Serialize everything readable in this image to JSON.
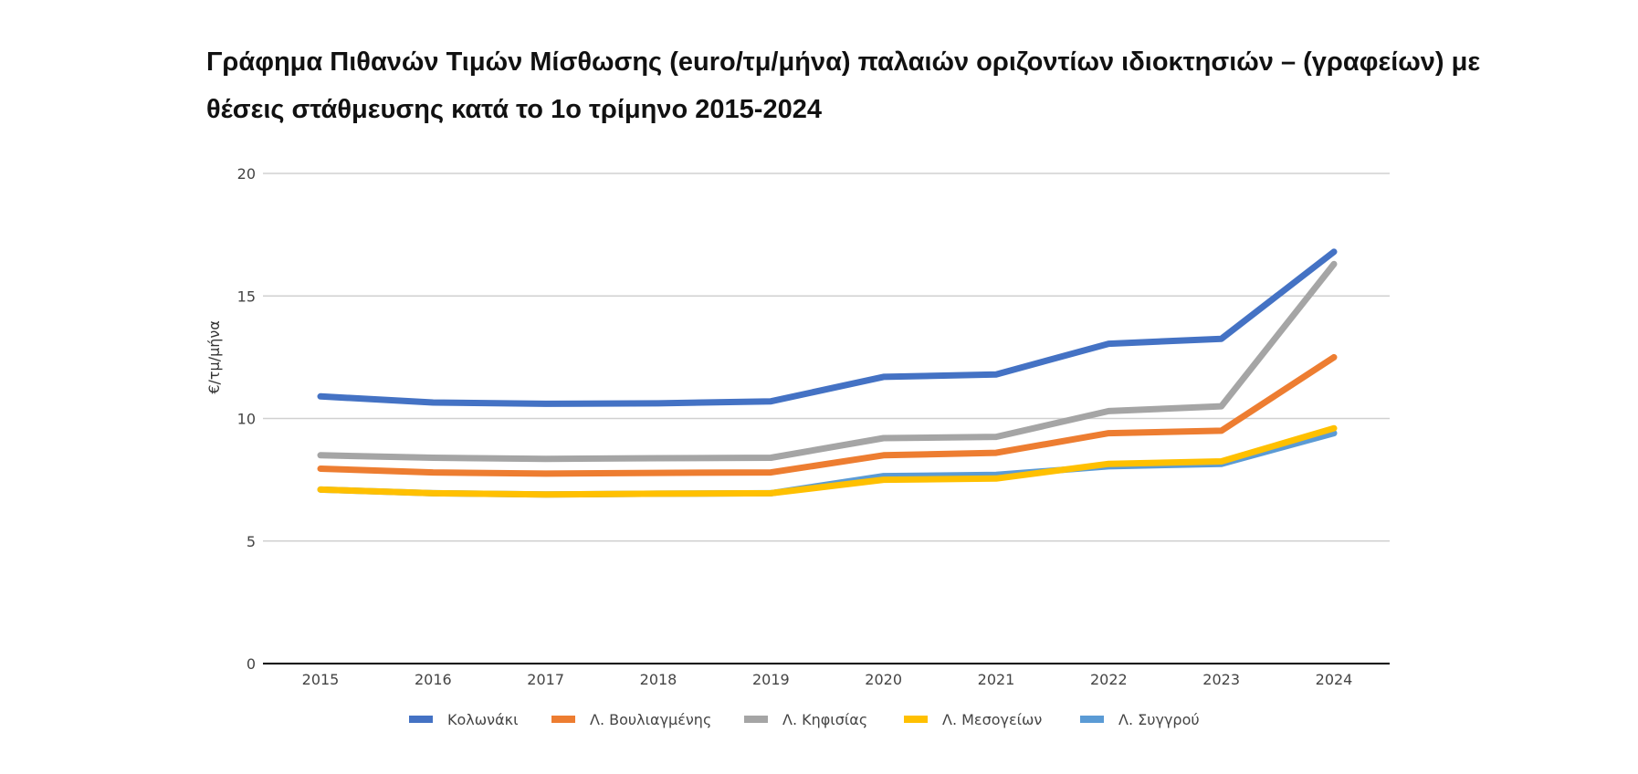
{
  "chart_data": {
    "type": "line",
    "title": "Γράφημα Πιθανών Τιμών Μίσθωσης (euro/τμ/μήνα) παλαιών οριζοντίων ιδιοκτησιών – (γραφείων) με θέσεις στάθμευσης κατά το 1ο τρίμηνο 2015-2024",
    "xlabel": "",
    "ylabel": "€/τμ/μήνα",
    "categories": [
      "2015",
      "2016",
      "2017",
      "2018",
      "2019",
      "2020",
      "2021",
      "2022",
      "2023",
      "2024"
    ],
    "ylim": [
      0,
      20
    ],
    "yticks": [
      0,
      5,
      10,
      15,
      20
    ],
    "grid": true,
    "legend_position": "bottom",
    "series": [
      {
        "name": "Κολωνάκι",
        "color": "#4472C4",
        "values": [
          10.9,
          10.65,
          10.6,
          10.62,
          10.7,
          11.7,
          11.8,
          13.05,
          13.25,
          16.8
        ]
      },
      {
        "name": "Λ. Βουλιαγμένης",
        "color": "#ED7D31",
        "values": [
          7.95,
          7.8,
          7.75,
          7.78,
          7.8,
          8.5,
          8.6,
          9.4,
          9.5,
          12.5
        ]
      },
      {
        "name": "Λ. Κηφισίας",
        "color": "#A5A5A5",
        "values": [
          8.5,
          8.4,
          8.35,
          8.38,
          8.4,
          9.2,
          9.25,
          10.3,
          10.5,
          16.3
        ]
      },
      {
        "name": "Λ. Μεσογείων",
        "color": "#FFC000",
        "values": [
          7.1,
          6.95,
          6.9,
          6.93,
          6.95,
          7.5,
          7.55,
          8.15,
          8.25,
          9.6
        ]
      },
      {
        "name": "Λ. Συγγρού",
        "color": "#5B9BD5",
        "values": [
          7.1,
          6.95,
          6.9,
          6.93,
          6.95,
          7.65,
          7.7,
          8.05,
          8.15,
          9.4
        ]
      }
    ]
  }
}
